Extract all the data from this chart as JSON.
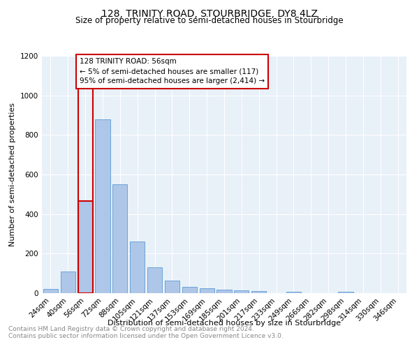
{
  "title": "128, TRINITY ROAD, STOURBRIDGE, DY8 4LZ",
  "subtitle": "Size of property relative to semi-detached houses in Stourbridge",
  "xlabel": "Distribution of semi-detached houses by size in Stourbridge",
  "ylabel": "Number of semi-detached properties",
  "footnote1": "Contains HM Land Registry data © Crown copyright and database right 2024.",
  "footnote2": "Contains public sector information licensed under the Open Government Licence v3.0.",
  "annotation_line1": "128 TRINITY ROAD: 56sqm",
  "annotation_line2": "← 5% of semi-detached houses are smaller (117)",
  "annotation_line3": "95% of semi-detached houses are larger (2,414) →",
  "bar_labels": [
    "24sqm",
    "40sqm",
    "56sqm",
    "72sqm",
    "88sqm",
    "105sqm",
    "121sqm",
    "137sqm",
    "153sqm",
    "169sqm",
    "185sqm",
    "201sqm",
    "217sqm",
    "233sqm",
    "249sqm",
    "266sqm",
    "282sqm",
    "298sqm",
    "314sqm",
    "330sqm",
    "346sqm"
  ],
  "bar_values": [
    20,
    110,
    465,
    880,
    550,
    260,
    130,
    65,
    32,
    25,
    18,
    15,
    10,
    0,
    8,
    0,
    0,
    8,
    0,
    0,
    0
  ],
  "bar_color": "#aec6e8",
  "bar_edge_color": "#5b9bd5",
  "highlight_index": 2,
  "highlight_color": "#cc0000",
  "ylim": [
    0,
    1200
  ],
  "yticks": [
    0,
    200,
    400,
    600,
    800,
    1000,
    1200
  ],
  "bg_color": "#e8f0f8",
  "annotation_box_color": "#ffffff",
  "annotation_box_edge": "#cc0000",
  "title_fontsize": 10,
  "subtitle_fontsize": 8.5,
  "axis_label_fontsize": 8,
  "tick_fontsize": 7.5,
  "annotation_fontsize": 7.5,
  "footnote_fontsize": 6.5
}
